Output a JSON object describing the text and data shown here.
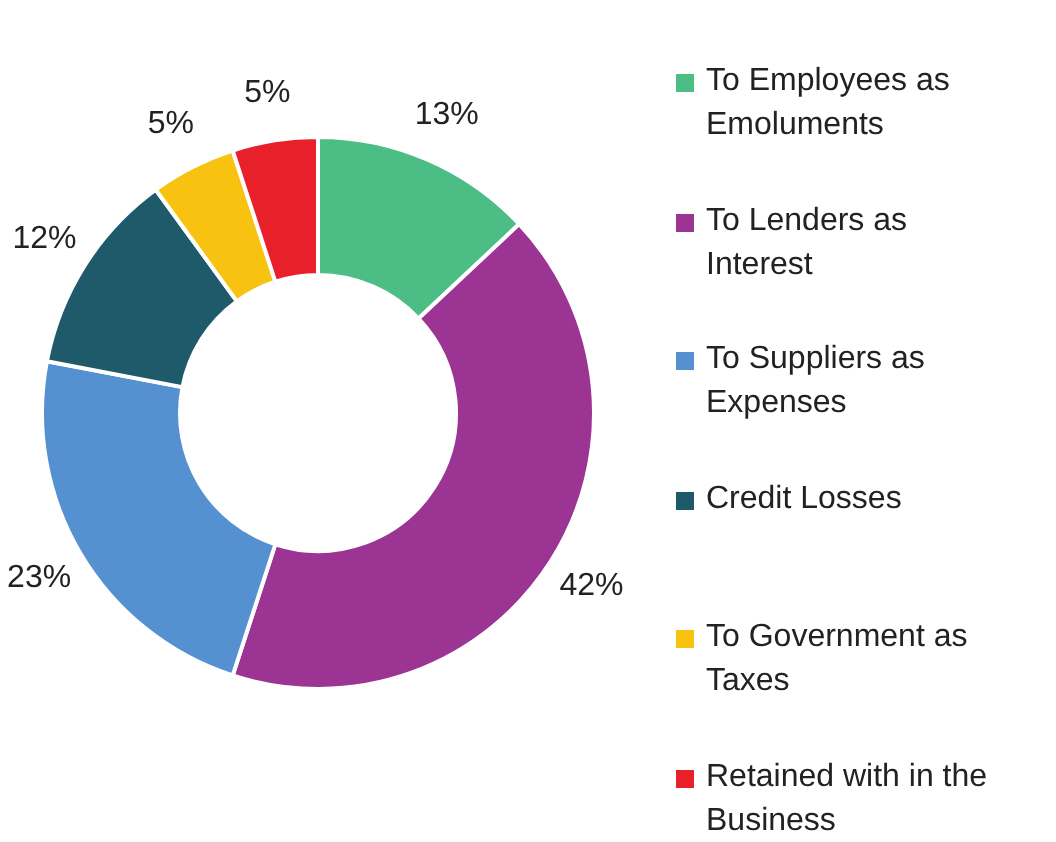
{
  "chart_data": {
    "type": "donut",
    "categories": [
      "To Employees as Emoluments",
      "To Lenders as Interest",
      "To Suppliers as Expenses",
      "Credit Losses",
      "To Government as Taxes",
      "Retained with in the Business"
    ],
    "values": [
      13,
      42,
      23,
      12,
      5,
      5
    ],
    "colors": [
      "#4dbd86",
      "#9b3493",
      "#5591d0",
      "#1f5a6a",
      "#f8c210",
      "#e8202a"
    ],
    "value_labels": [
      "13%",
      "42%",
      "23%",
      "12%",
      "5%",
      "5%"
    ],
    "legend": "right"
  }
}
